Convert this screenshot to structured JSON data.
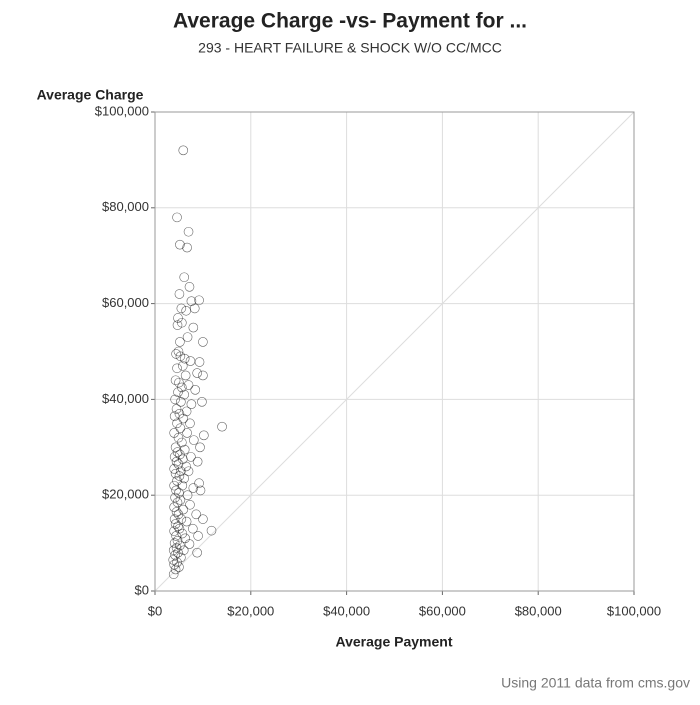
{
  "chart_data": {
    "type": "scatter",
    "title": "Average Charge -vs- Payment for ...",
    "subtitle": "293 - HEART FAILURE & SHOCK W/O CC/MCC",
    "x_label": "Average Payment",
    "y_label": "Average Charge",
    "footnote": "Using 2011 data from cms.gov",
    "color": "#000000",
    "grid": true,
    "xlim": [
      0,
      100000
    ],
    "ylim": [
      0,
      100000
    ],
    "xticks": [
      {
        "value": 0,
        "label": "$0"
      },
      {
        "value": 20000,
        "label": "$20,000"
      },
      {
        "value": 40000,
        "label": "$40,000"
      },
      {
        "value": 60000,
        "label": "$60,000"
      },
      {
        "value": 80000,
        "label": "$80,000"
      },
      {
        "value": 100000,
        "label": "$100,000"
      }
    ],
    "yticks": [
      {
        "value": 0,
        "label": "$0"
      },
      {
        "value": 20000,
        "label": "$20,000"
      },
      {
        "value": 40000,
        "label": "$40,000"
      },
      {
        "value": 60000,
        "label": "$60,000"
      },
      {
        "value": 80000,
        "label": "$80,000"
      },
      {
        "value": 100000,
        "label": "$100,000"
      }
    ],
    "x": [
      5900,
      4600,
      7000,
      5200,
      6700,
      6100,
      7200,
      5100,
      7600,
      9200,
      5500,
      8300,
      6500,
      4800,
      5600,
      8000,
      4700,
      6800,
      10000,
      5200,
      4900,
      4400,
      5300,
      6200,
      7400,
      9300,
      5800,
      4600,
      10000,
      8800,
      6400,
      4300,
      5000,
      7000,
      5600,
      8400,
      4800,
      6100,
      4200,
      5400,
      7600,
      9800,
      4500,
      6600,
      5100,
      4100,
      14000,
      5900,
      7300,
      4600,
      10200,
      5300,
      4000,
      6700,
      4900,
      8100,
      5600,
      4300,
      9400,
      6200,
      4700,
      5200,
      4100,
      7500,
      5800,
      4500,
      8900,
      4900,
      6500,
      4000,
      5400,
      7000,
      4300,
      5100,
      6100,
      4600,
      9200,
      4000,
      5700,
      8000,
      4400,
      5000,
      6800,
      9500,
      4200,
      5300,
      4700,
      7300,
      4000,
      5900,
      4500,
      8600,
      4900,
      4100,
      5500,
      6600,
      4300,
      10000,
      4800,
      5100,
      7900,
      4000,
      11800,
      5700,
      4400,
      6300,
      9000,
      4700,
      4100,
      5200,
      7200,
      4500,
      3900,
      6000,
      4800,
      4200,
      5400,
      3800,
      8800,
      4600,
      4000,
      5000,
      4300,
      3900
    ],
    "values": [
      92000,
      78000,
      75000,
      72300,
      71700,
      65500,
      63500,
      62000,
      60500,
      60700,
      59000,
      59000,
      58500,
      57000,
      56000,
      55000,
      55500,
      53000,
      52000,
      52000,
      50000,
      49500,
      49000,
      48500,
      48000,
      47800,
      47000,
      46500,
      45000,
      45500,
      45000,
      44000,
      43500,
      43000,
      42500,
      42000,
      41500,
      41000,
      40000,
      39500,
      39000,
      39500,
      38000,
      37500,
      37000,
      36500,
      34300,
      36000,
      35000,
      35000,
      32500,
      34000,
      33000,
      33000,
      32000,
      31500,
      31000,
      30000,
      30000,
      29500,
      29000,
      28500,
      28000,
      28000,
      27500,
      27000,
      27000,
      26500,
      26000,
      25500,
      25000,
      25000,
      24500,
      24000,
      23500,
      23000,
      22500,
      22000,
      22000,
      21500,
      21000,
      20500,
      20000,
      21000,
      19500,
      19000,
      18500,
      18000,
      17500,
      17000,
      16500,
      16000,
      16000,
      15000,
      15000,
      14500,
      14000,
      15000,
      13500,
      13000,
      13000,
      12500,
      12600,
      12000,
      11500,
      11000,
      11500,
      10500,
      10000,
      9500,
      9800,
      9000,
      8500,
      8500,
      8000,
      7500,
      7000,
      6500,
      8000,
      6000,
      5500,
      5000,
      4500,
      3500
    ]
  }
}
